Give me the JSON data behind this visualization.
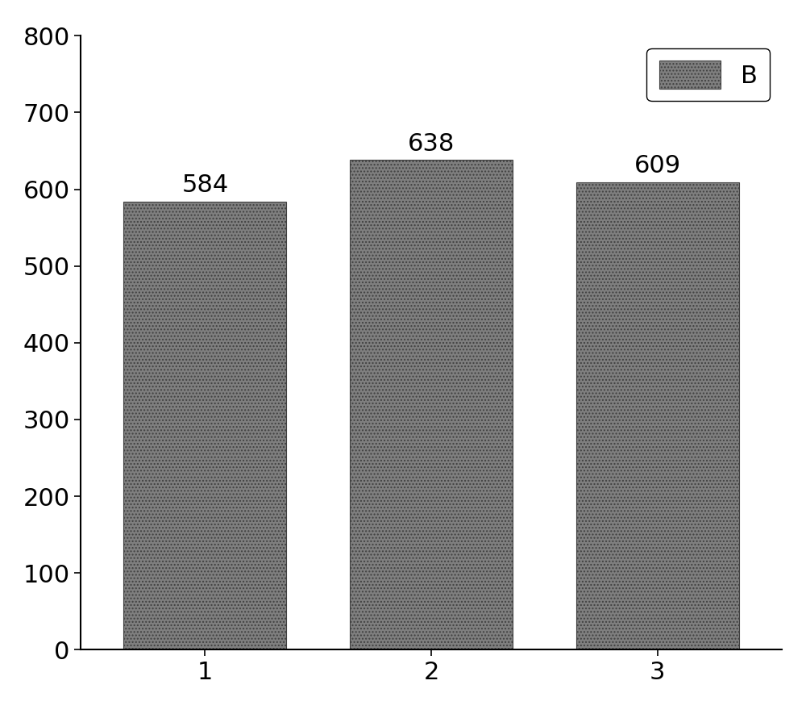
{
  "categories": [
    "1",
    "2",
    "3"
  ],
  "values": [
    584,
    638,
    609
  ],
  "bar_color": "#7f7f7f",
  "bar_edgecolor": "#404040",
  "background_color": "#ffffff",
  "ylim": [
    0,
    800
  ],
  "yticks": [
    0,
    100,
    200,
    300,
    400,
    500,
    600,
    700,
    800
  ],
  "legend_label": "B",
  "label_fontsize": 22,
  "tick_fontsize": 22,
  "annotation_fontsize": 22,
  "bar_width": 0.72,
  "hatch": "...."
}
